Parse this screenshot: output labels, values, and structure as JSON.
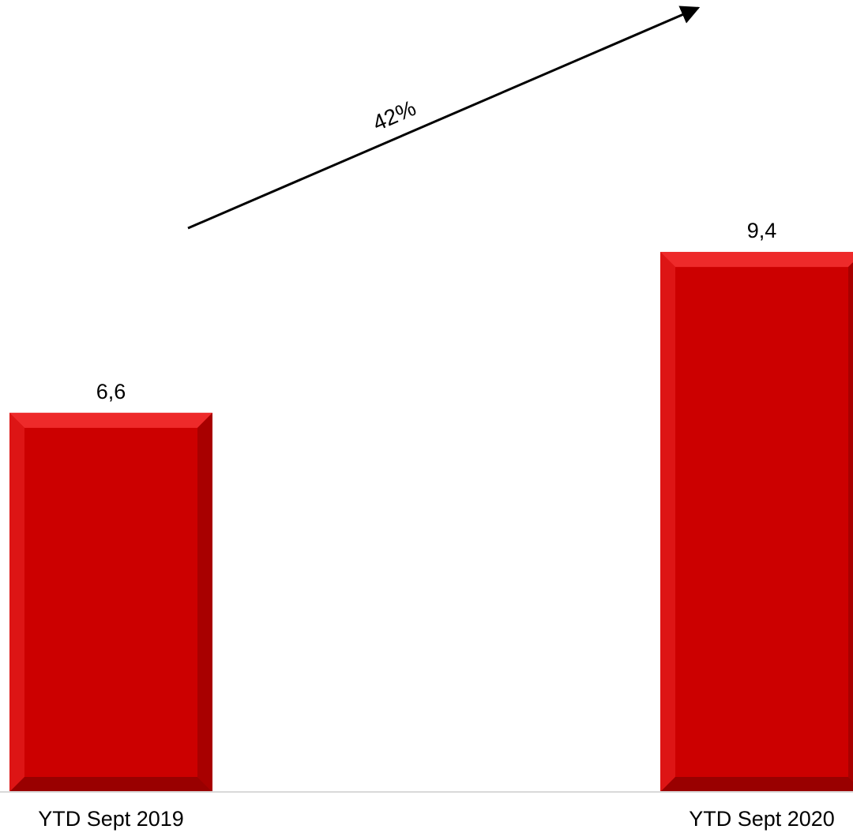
{
  "chart_data": {
    "type": "bar",
    "categories": [
      "YTD Sept 2019",
      "YTD Sept 2020"
    ],
    "values": [
      6.6,
      9.4
    ],
    "data_labels": [
      "6,6",
      "9,4"
    ],
    "title": "",
    "xlabel": "",
    "ylabel": "",
    "ylim": [
      0,
      10
    ],
    "grid": false,
    "legend": "none",
    "bar_color": "#cc0000",
    "annotation": {
      "type": "growth-arrow",
      "from": "YTD Sept 2019",
      "to": "YTD Sept 2020",
      "label": "42%"
    }
  }
}
